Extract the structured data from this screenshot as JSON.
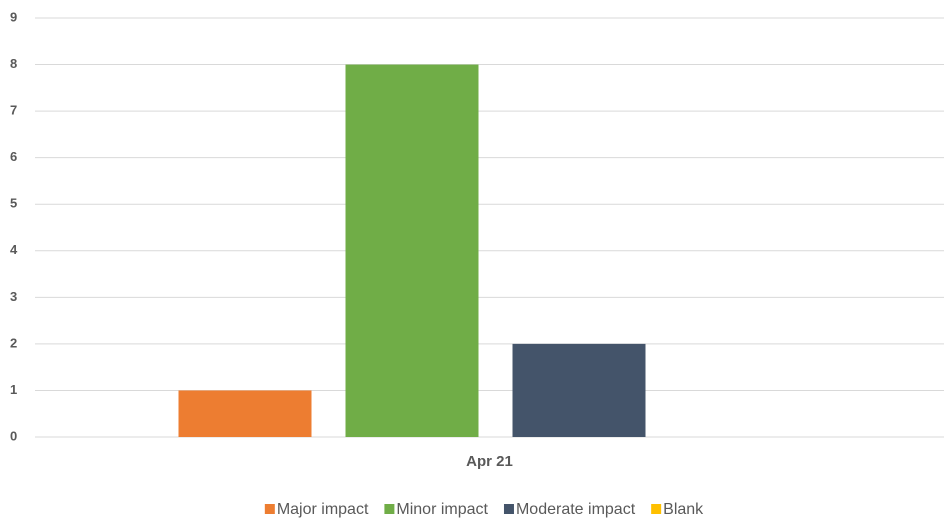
{
  "chart_data": {
    "type": "bar",
    "categories": [
      "Apr 21"
    ],
    "series": [
      {
        "name": "Major impact",
        "color": "#ED7D31",
        "values": [
          1
        ]
      },
      {
        "name": "Minor impact",
        "color": "#70AD47",
        "values": [
          8
        ]
      },
      {
        "name": "Moderate impact",
        "color": "#44546A",
        "values": [
          2
        ]
      },
      {
        "name": "Blank",
        "color": "#FFC000",
        "values": [
          0
        ]
      }
    ],
    "ylim": [
      0,
      9
    ],
    "yticks": [
      0,
      1,
      2,
      3,
      4,
      5,
      6,
      7,
      8,
      9
    ],
    "grid": true,
    "legend": "bottom"
  }
}
